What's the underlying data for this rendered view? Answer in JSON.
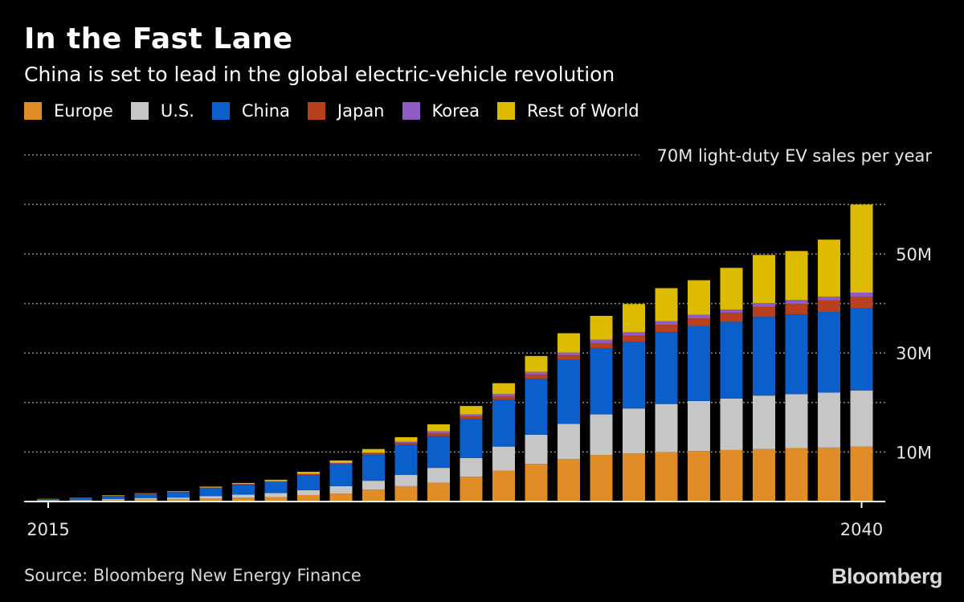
{
  "header": {
    "title": "In the Fast Lane",
    "subtitle": "China is set to lead in the global electric-vehicle revolution"
  },
  "source": "Source: Bloomberg New Energy Finance",
  "logo_text": "Bloomberg",
  "chart_data": {
    "type": "bar",
    "stacked": true,
    "x": [
      2015,
      2016,
      2017,
      2018,
      2019,
      2020,
      2021,
      2022,
      2023,
      2024,
      2025,
      2026,
      2027,
      2028,
      2029,
      2030,
      2031,
      2032,
      2033,
      2034,
      2035,
      2036,
      2037,
      2038,
      2039,
      2040
    ],
    "x_tick_labels": [
      "2015",
      "2040"
    ],
    "y_unit": "M",
    "ylim": [
      0,
      70
    ],
    "y_gridlines": [
      10,
      20,
      30,
      40,
      50,
      60,
      70
    ],
    "y_tick_labels": [
      {
        "value": 10,
        "label": "10M"
      },
      {
        "value": 30,
        "label": "30M"
      },
      {
        "value": 50,
        "label": "50M"
      },
      {
        "value": 70,
        "label": "70M light-duty EV sales per year"
      }
    ],
    "grid": true,
    "legend_position": "top-left",
    "series": [
      {
        "name": "Europe",
        "color": "#e08d28",
        "values": [
          0.15,
          0.2,
          0.3,
          0.4,
          0.5,
          0.6,
          0.8,
          0.9,
          1.3,
          1.6,
          2.4,
          3.1,
          3.8,
          5.0,
          6.2,
          7.6,
          8.6,
          9.4,
          9.7,
          10.0,
          10.2,
          10.4,
          10.6,
          10.8,
          10.9,
          11.1
        ]
      },
      {
        "name": "U.S.",
        "color": "#c6c6c6",
        "values": [
          0.1,
          0.1,
          0.2,
          0.3,
          0.3,
          0.5,
          0.6,
          0.8,
          1.0,
          1.5,
          1.8,
          2.3,
          3.0,
          3.8,
          4.9,
          5.9,
          7.1,
          8.2,
          9.1,
          9.7,
          10.1,
          10.4,
          10.8,
          10.9,
          11.1,
          11.3
        ]
      },
      {
        "name": "China",
        "color": "#0a5fcb",
        "values": [
          0.2,
          0.4,
          0.6,
          0.8,
          1.1,
          1.6,
          2.0,
          2.2,
          3.0,
          4.4,
          5.2,
          6.0,
          6.4,
          7.8,
          9.4,
          11.3,
          12.9,
          13.3,
          13.4,
          14.5,
          15.1,
          15.5,
          15.9,
          16.1,
          16.3,
          16.6
        ]
      },
      {
        "name": "Japan",
        "color": "#b8401e",
        "values": [
          0.03,
          0.03,
          0.05,
          0.05,
          0.07,
          0.07,
          0.1,
          0.1,
          0.2,
          0.2,
          0.3,
          0.4,
          0.6,
          0.6,
          0.7,
          0.8,
          0.9,
          1.1,
          1.3,
          1.5,
          1.6,
          1.8,
          2.0,
          2.1,
          2.3,
          2.4
        ]
      },
      {
        "name": "Korea",
        "color": "#8e5cc4",
        "values": [
          0.02,
          0.02,
          0.03,
          0.03,
          0.05,
          0.05,
          0.05,
          0.1,
          0.1,
          0.1,
          0.2,
          0.3,
          0.4,
          0.4,
          0.5,
          0.6,
          0.6,
          0.7,
          0.7,
          0.7,
          0.7,
          0.7,
          0.8,
          0.8,
          0.8,
          0.8
        ]
      },
      {
        "name": "Rest of World",
        "color": "#ddbb00",
        "values": [
          0.05,
          0.05,
          0.1,
          0.1,
          0.1,
          0.2,
          0.2,
          0.3,
          0.4,
          0.5,
          0.7,
          0.9,
          1.4,
          1.7,
          2.2,
          3.2,
          3.9,
          4.8,
          5.7,
          6.7,
          7.0,
          8.4,
          9.7,
          9.9,
          11.5,
          17.8
        ]
      }
    ]
  }
}
